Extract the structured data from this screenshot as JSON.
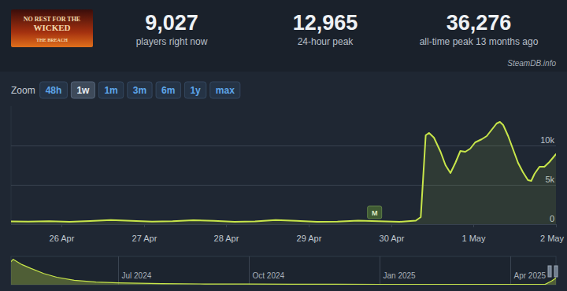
{
  "header": {
    "logo": [
      "NO REST FOR THE",
      "WICKED",
      "THE BREACH"
    ],
    "stats": [
      {
        "value": "9,027",
        "label": "players right now"
      },
      {
        "value": "12,965",
        "label": "24-hour peak"
      },
      {
        "value": "36,276",
        "label": "all-time peak 13 months ago"
      }
    ],
    "source": "SteamDB.info"
  },
  "zoom": {
    "label": "Zoom",
    "options": [
      "48h",
      "1w",
      "1m",
      "3m",
      "6m",
      "1y",
      "max"
    ],
    "active": "1w"
  },
  "chart_data": [
    {
      "type": "line",
      "color": "#c8e64a",
      "x": [
        0.39,
        0.6,
        0.85,
        1.1,
        1.35,
        1.6,
        1.85,
        2.1,
        2.35,
        2.6,
        2.85,
        3.1,
        3.35,
        3.6,
        3.85,
        4.1,
        4.35,
        4.6,
        4.85,
        5.1,
        5.3,
        5.36,
        5.42,
        5.46,
        5.52,
        5.6,
        5.66,
        5.72,
        5.78,
        5.84,
        5.9,
        5.96,
        6.02,
        6.1,
        6.16,
        6.22,
        6.28,
        6.32,
        6.36,
        6.42,
        6.48,
        6.54,
        6.6,
        6.66,
        6.7,
        6.74,
        6.8,
        6.86,
        6.92,
        7.0
      ],
      "values": [
        350,
        320,
        380,
        300,
        400,
        520,
        420,
        320,
        380,
        500,
        420,
        310,
        360,
        520,
        430,
        300,
        330,
        440,
        380,
        300,
        450,
        900,
        11300,
        11600,
        11000,
        9200,
        7500,
        6500,
        7800,
        9300,
        9200,
        9600,
        10400,
        10800,
        11200,
        12000,
        12800,
        13000,
        12600,
        11200,
        9500,
        7800,
        6600,
        5600,
        5500,
        6400,
        7300,
        7300,
        7900,
        8900
      ],
      "xlim": [
        0.39,
        7.0
      ],
      "xticks": [
        {
          "value": 1,
          "label": "26 Apr"
        },
        {
          "value": 2,
          "label": "27 Apr"
        },
        {
          "value": 3,
          "label": "28 Apr"
        },
        {
          "value": 4,
          "label": "29 Apr"
        },
        {
          "value": 5,
          "label": "30 Apr"
        },
        {
          "value": 6,
          "label": "1 May"
        },
        {
          "value": 7,
          "label": "2 May"
        }
      ],
      "ylim": [
        0,
        15000
      ],
      "yticks": [
        0,
        {
          "value": 5000,
          "label": "5k"
        },
        {
          "value": 10000,
          "label": "10k"
        }
      ],
      "grid": true,
      "annotations": [
        {
          "x": 4.8,
          "label": "M"
        }
      ]
    },
    {
      "type": "area",
      "color": "#c8e64a",
      "x": [
        3.55,
        3.6,
        3.8,
        4.0,
        4.3,
        4.6,
        5.0,
        5.5,
        6.0,
        7,
        8,
        9,
        10,
        11,
        12,
        13,
        14,
        15,
        15.8,
        15.95,
        16.05
      ],
      "values": [
        31000,
        34000,
        27000,
        22000,
        15000,
        10000,
        6000,
        3500,
        2500,
        1500,
        1000,
        900,
        700,
        600,
        500,
        450,
        400,
        350,
        400,
        5000,
        9000
      ],
      "xlim": [
        3.55,
        16.05
      ],
      "xticks": [
        {
          "value": 6,
          "label": "Jul 2024"
        },
        {
          "value": 9,
          "label": "Oct 2024"
        },
        {
          "value": 12,
          "label": "Jan 2025"
        },
        {
          "value": 15,
          "label": "Apr 2025"
        }
      ],
      "ylim": [
        0,
        38000
      ],
      "grid": true,
      "tick_labels": "x"
    }
  ]
}
